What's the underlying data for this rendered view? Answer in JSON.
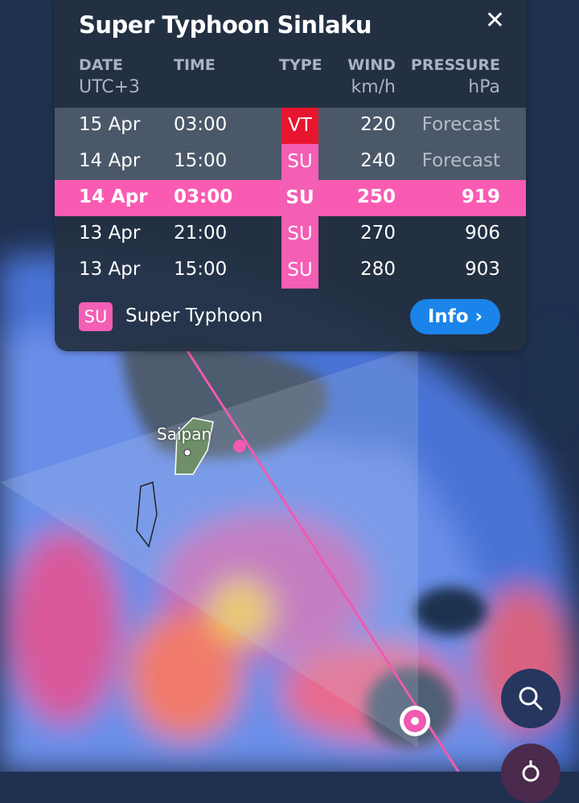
{
  "storm": {
    "title": "Super Typhoon Sinlaku"
  },
  "table": {
    "headers": {
      "date": "DATE",
      "time": "TIME",
      "type": "TYPE",
      "wind": "WIND",
      "pressure": "PRESSURE"
    },
    "units": {
      "date": "UTC+3",
      "wind": "km/h",
      "pressure": "hPa"
    },
    "rows": [
      {
        "date": "15 Apr",
        "time": "03:00",
        "type": "VT",
        "wind": "220",
        "pressure": "Forecast",
        "state": "forecast"
      },
      {
        "date": "14 Apr",
        "time": "15:00",
        "type": "SU",
        "wind": "240",
        "pressure": "Forecast",
        "state": "forecast"
      },
      {
        "date": "14 Apr",
        "time": "03:00",
        "type": "SU",
        "wind": "250",
        "pressure": "919",
        "state": "selected"
      },
      {
        "date": "13 Apr",
        "time": "21:00",
        "type": "SU",
        "wind": "270",
        "pressure": "906",
        "state": "past"
      },
      {
        "date": "13 Apr",
        "time": "15:00",
        "type": "SU",
        "wind": "280",
        "pressure": "903",
        "state": "past"
      }
    ]
  },
  "legend": {
    "badge": "SU",
    "label": "Super Typhoon"
  },
  "info_button": {
    "label": "Info",
    "icon": "chevron-right-icon"
  },
  "map": {
    "place_label": "Saipan"
  },
  "colors": {
    "super_typhoon": "#f45eb4",
    "violent_typhoon": "#e8152f",
    "accent": "#1a84ea",
    "track": "#f05ab0"
  }
}
